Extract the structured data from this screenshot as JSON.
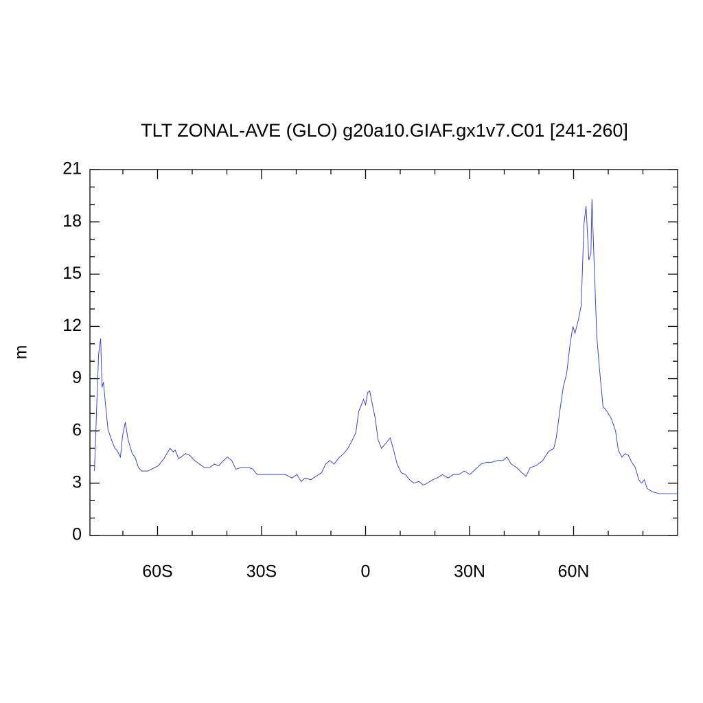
{
  "chart_data": {
    "type": "line",
    "title": "TLT ZONAL-AVE (GLO) g20a10.GIAF.gx1v7.C01 [241-260]",
    "ylabel": "m",
    "xlim": [
      -79.5,
      90
    ],
    "ylim": [
      0,
      21
    ],
    "xticks": [
      {
        "value": -60,
        "label": "60S"
      },
      {
        "value": -30,
        "label": "30S"
      },
      0,
      {
        "value": 30,
        "label": "30N"
      },
      {
        "value": 60,
        "label": "60N"
      }
    ],
    "xminorticks": [
      -70,
      -50,
      -40,
      -20,
      -10,
      10,
      20,
      40,
      50,
      70,
      80
    ],
    "yticks": [
      0,
      3,
      6,
      9,
      12,
      15,
      18,
      21
    ],
    "yminorticks": [
      1,
      2,
      4,
      5,
      7,
      8,
      10,
      11,
      13,
      14,
      16,
      17,
      19,
      20
    ],
    "series": [
      {
        "color": "#4040e0",
        "x": [
          -78.2,
          -77.6,
          -77.0,
          -76.4,
          -76.0,
          -75.6,
          -75.0,
          -74.3,
          -73.3,
          -72.3,
          -71.7,
          -70.7,
          -70.1,
          -69.3,
          -68.5,
          -67.3,
          -66.5,
          -65.5,
          -64.6,
          -62.8,
          -59.8,
          -58.2,
          -56.4,
          -55.4,
          -54.9,
          -53.9,
          -51.9,
          -50.7,
          -49.3,
          -47.9,
          -46.5,
          -45.0,
          -43.6,
          -42.4,
          -41.0,
          -39.8,
          -38.6,
          -37.4,
          -36.0,
          -34.9,
          -33.7,
          -32.5,
          -31.3,
          -29.7,
          -27.7,
          -25.7,
          -23.2,
          -21.2,
          -19.8,
          -18.6,
          -17.4,
          -15.8,
          -14.3,
          -12.7,
          -11.5,
          -10.3,
          -9.1,
          -8.3,
          -7.5,
          -6.3,
          -5.1,
          -4.0,
          -2.8,
          -2.0,
          -1.2,
          -0.6,
          0,
          0.6,
          1.2,
          2.0,
          2.8,
          3.6,
          4.6,
          5.9,
          7.1,
          8.1,
          9.1,
          10.3,
          11.5,
          12.7,
          13.9,
          15.4,
          16.6,
          17.8,
          19.4,
          20.6,
          22.2,
          23.8,
          25.3,
          26.9,
          28.5,
          30.1,
          31.7,
          33.3,
          34.9,
          36.4,
          38.0,
          39.6,
          40.8,
          42.0,
          43.6,
          45.1,
          46.3,
          47.5,
          49.1,
          51.1,
          52.7,
          54.3,
          55.0,
          56.0,
          57.0,
          58.0,
          59.0,
          59.8,
          60.4,
          61.4,
          62.2,
          63.0,
          63.6,
          64.4,
          65.0,
          65.3,
          65.9,
          66.7,
          67.5,
          68.5,
          69.7,
          70.9,
          72.1,
          72.9,
          73.9,
          74.9,
          75.8,
          76.8,
          77.8,
          78.8,
          79.6,
          80.4,
          81.2,
          82.8,
          84.8,
          87.7,
          90
        ],
        "values": [
          3.7,
          7.1,
          10.4,
          11.3,
          8.5,
          8.8,
          7.5,
          6.1,
          5.5,
          5.0,
          4.9,
          4.5,
          5.7,
          6.5,
          5.5,
          4.7,
          4.5,
          3.9,
          3.7,
          3.7,
          4.0,
          4.4,
          5.0,
          4.8,
          4.9,
          4.4,
          4.7,
          4.6,
          4.3,
          4.1,
          3.9,
          3.9,
          4.1,
          4.0,
          4.3,
          4.5,
          4.3,
          3.8,
          3.9,
          3.9,
          3.9,
          3.8,
          3.5,
          3.5,
          3.5,
          3.5,
          3.5,
          3.3,
          3.5,
          3.1,
          3.3,
          3.2,
          3.4,
          3.6,
          4.1,
          4.3,
          4.1,
          4.3,
          4.5,
          4.7,
          5.0,
          5.4,
          5.9,
          7.1,
          7.5,
          7.8,
          7.5,
          8.2,
          8.3,
          7.5,
          6.7,
          5.5,
          5.0,
          5.3,
          5.6,
          4.9,
          4.1,
          3.6,
          3.5,
          3.2,
          3.0,
          3.1,
          2.9,
          3.0,
          3.2,
          3.3,
          3.5,
          3.3,
          3.5,
          3.5,
          3.7,
          3.5,
          3.8,
          4.1,
          4.2,
          4.2,
          4.3,
          4.3,
          4.5,
          4.1,
          3.9,
          3.6,
          3.4,
          3.9,
          4.0,
          4.3,
          4.8,
          5.0,
          5.6,
          7.1,
          8.5,
          9.3,
          11.0,
          12.0,
          11.6,
          12.4,
          13.2,
          17.9,
          18.9,
          15.8,
          16.2,
          19.3,
          15.8,
          11.4,
          9.5,
          7.4,
          7.1,
          6.7,
          6.0,
          4.9,
          4.5,
          4.7,
          4.6,
          4.2,
          3.9,
          3.2,
          3.0,
          3.2,
          2.7,
          2.5,
          2.4,
          2.4,
          2.4
        ]
      }
    ]
  }
}
